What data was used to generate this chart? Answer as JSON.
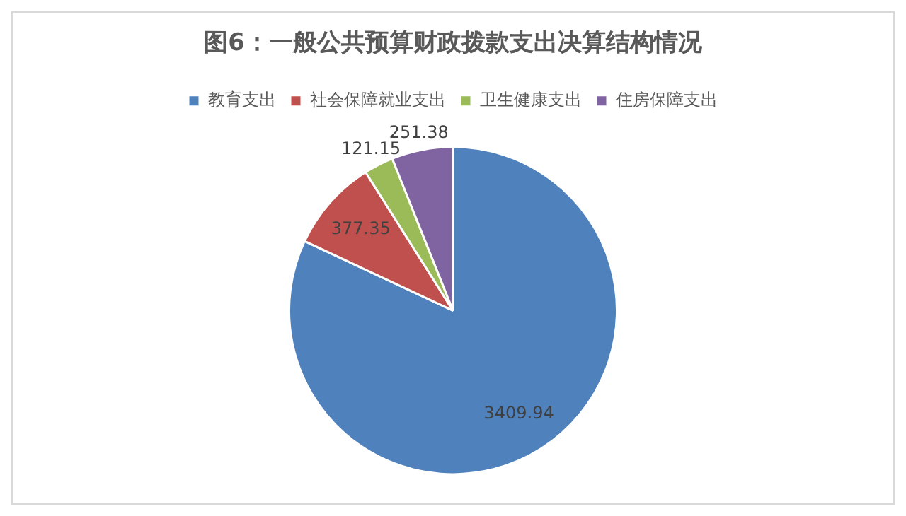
{
  "chart_data": {
    "type": "pie",
    "title": "图6：一般公共预算财政拨款支出决算结构情况",
    "categories": [
      "教育支出",
      "社会保障就业支出",
      "卫生健康支出",
      "住房保障支出"
    ],
    "values": [
      3409.94,
      377.35,
      121.15,
      251.38
    ],
    "colors": [
      "#4f81bd",
      "#c0504d",
      "#9bbb59",
      "#8064a2"
    ],
    "legend": "top",
    "data_labels": true
  }
}
